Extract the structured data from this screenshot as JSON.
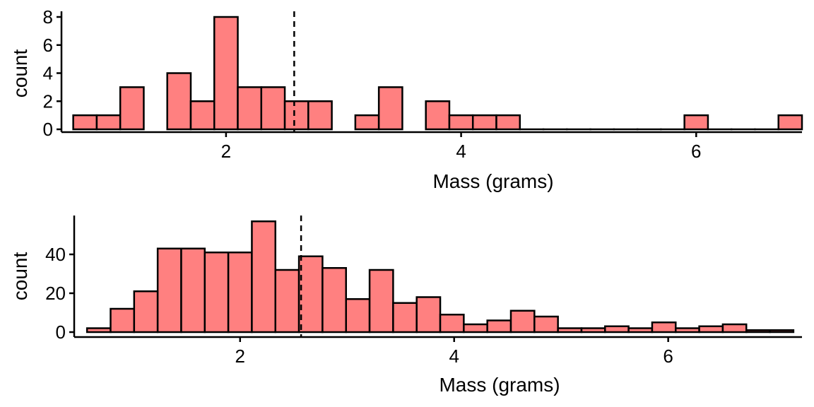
{
  "chart_data": [
    {
      "type": "bar",
      "xlabel": "Mass (grams)",
      "ylabel": "count",
      "xlim": [
        0.6,
        6.9
      ],
      "ylim": [
        0,
        8
      ],
      "x_ticks": [
        2,
        4,
        6
      ],
      "y_ticks": [
        0,
        2,
        4,
        6,
        8
      ],
      "bin_width": 0.2,
      "bins": [
        {
          "x0": 0.7,
          "x1": 0.9,
          "count": 1
        },
        {
          "x0": 0.9,
          "x1": 1.1,
          "count": 1
        },
        {
          "x0": 1.1,
          "x1": 1.3,
          "count": 3
        },
        {
          "x0": 1.5,
          "x1": 1.7,
          "count": 4
        },
        {
          "x0": 1.7,
          "x1": 1.9,
          "count": 2
        },
        {
          "x0": 1.9,
          "x1": 2.1,
          "count": 8
        },
        {
          "x0": 2.1,
          "x1": 2.3,
          "count": 3
        },
        {
          "x0": 2.3,
          "x1": 2.5,
          "count": 3
        },
        {
          "x0": 2.5,
          "x1": 2.7,
          "count": 2
        },
        {
          "x0": 2.7,
          "x1": 2.9,
          "count": 2
        },
        {
          "x0": 3.1,
          "x1": 3.3,
          "count": 1
        },
        {
          "x0": 3.3,
          "x1": 3.5,
          "count": 3
        },
        {
          "x0": 3.7,
          "x1": 3.9,
          "count": 2
        },
        {
          "x0": 3.9,
          "x1": 4.1,
          "count": 1
        },
        {
          "x0": 4.1,
          "x1": 4.3,
          "count": 1
        },
        {
          "x0": 4.3,
          "x1": 4.5,
          "count": 1
        },
        {
          "x0": 4.5,
          "x1": 4.7,
          "count": 0
        },
        {
          "x0": 4.7,
          "x1": 4.9,
          "count": 0
        },
        {
          "x0": 4.9,
          "x1": 5.1,
          "count": 0
        },
        {
          "x0": 5.1,
          "x1": 5.3,
          "count": 0
        },
        {
          "x0": 5.3,
          "x1": 5.5,
          "count": 0
        },
        {
          "x0": 5.5,
          "x1": 5.7,
          "count": 0
        },
        {
          "x0": 5.7,
          "x1": 5.9,
          "count": 0
        },
        {
          "x0": 5.9,
          "x1": 6.1,
          "count": 1
        },
        {
          "x0": 6.1,
          "x1": 6.3,
          "count": 0
        },
        {
          "x0": 6.3,
          "x1": 6.5,
          "count": 0
        },
        {
          "x0": 6.5,
          "x1": 6.7,
          "count": 0
        },
        {
          "x0": 6.7,
          "x1": 6.9,
          "count": 1
        }
      ],
      "reference_line_x": 2.58,
      "bar_color": "#FF8080",
      "line_color": "#000000"
    },
    {
      "type": "bar",
      "xlabel": "Mass (grams)",
      "ylabel": "count",
      "xlim": [
        0.45,
        7.25
      ],
      "ylim": [
        0,
        60
      ],
      "x_ticks": [
        2,
        4,
        6
      ],
      "y_ticks": [
        0,
        20,
        40
      ],
      "bin_width": 0.22,
      "bins": [
        {
          "x0": 0.57,
          "x1": 0.79,
          "count": 2
        },
        {
          "x0": 0.79,
          "x1": 1.01,
          "count": 12
        },
        {
          "x0": 1.01,
          "x1": 1.23,
          "count": 21
        },
        {
          "x0": 1.23,
          "x1": 1.45,
          "count": 43
        },
        {
          "x0": 1.45,
          "x1": 1.67,
          "count": 43
        },
        {
          "x0": 1.67,
          "x1": 1.89,
          "count": 41
        },
        {
          "x0": 1.89,
          "x1": 2.11,
          "count": 41
        },
        {
          "x0": 2.11,
          "x1": 2.33,
          "count": 57
        },
        {
          "x0": 2.33,
          "x1": 2.55,
          "count": 32
        },
        {
          "x0": 2.55,
          "x1": 2.77,
          "count": 39
        },
        {
          "x0": 2.77,
          "x1": 2.99,
          "count": 33
        },
        {
          "x0": 2.99,
          "x1": 3.21,
          "count": 17
        },
        {
          "x0": 3.21,
          "x1": 3.43,
          "count": 32
        },
        {
          "x0": 3.43,
          "x1": 3.65,
          "count": 15
        },
        {
          "x0": 3.65,
          "x1": 3.87,
          "count": 18
        },
        {
          "x0": 3.87,
          "x1": 4.09,
          "count": 9
        },
        {
          "x0": 4.09,
          "x1": 4.31,
          "count": 4
        },
        {
          "x0": 4.31,
          "x1": 4.53,
          "count": 6
        },
        {
          "x0": 4.53,
          "x1": 4.75,
          "count": 11
        },
        {
          "x0": 4.75,
          "x1": 4.97,
          "count": 8
        },
        {
          "x0": 4.97,
          "x1": 5.19,
          "count": 2
        },
        {
          "x0": 5.19,
          "x1": 5.41,
          "count": 2
        },
        {
          "x0": 5.41,
          "x1": 5.63,
          "count": 3
        },
        {
          "x0": 5.63,
          "x1": 5.85,
          "count": 2
        },
        {
          "x0": 5.85,
          "x1": 6.07,
          "count": 5
        },
        {
          "x0": 6.07,
          "x1": 6.29,
          "count": 2
        },
        {
          "x0": 6.29,
          "x1": 6.51,
          "count": 3
        },
        {
          "x0": 6.51,
          "x1": 6.73,
          "count": 4
        },
        {
          "x0": 6.73,
          "x1": 6.95,
          "count": 1
        },
        {
          "x0": 6.95,
          "x1": 7.17,
          "count": 1
        }
      ],
      "reference_line_x": 2.57,
      "bar_color": "#FF8080",
      "line_color": "#000000"
    }
  ]
}
